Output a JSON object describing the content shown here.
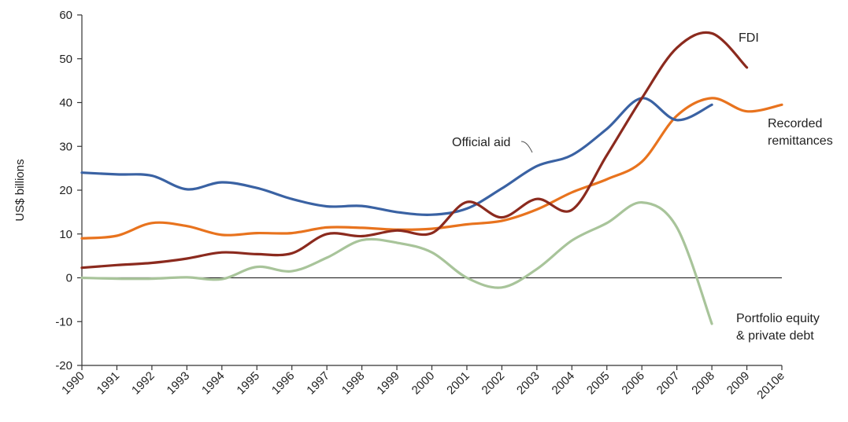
{
  "chart_data": {
    "type": "line",
    "title": "",
    "xlabel": "",
    "ylabel": "US$ billions",
    "ylim": [
      -20,
      60
    ],
    "yticks": [
      "60",
      "50",
      "40",
      "30",
      "20",
      "10",
      "0",
      "-10",
      "-20"
    ],
    "categories": [
      "1990",
      "1991",
      "1992",
      "1993",
      "1994",
      "1995",
      "1996",
      "1997",
      "1998",
      "1999",
      "2000",
      "2001",
      "2002",
      "2003",
      "2004",
      "2005",
      "2006",
      "2007",
      "2008",
      "2009",
      "2010e"
    ],
    "grid": false,
    "zero_line": true,
    "series": [
      {
        "name": "Official aid",
        "color": "#3a62a3",
        "x": [
          "1990",
          "1991",
          "1992",
          "1993",
          "1994",
          "1995",
          "1996",
          "1997",
          "1998",
          "1999",
          "2000",
          "2001",
          "2002",
          "2003",
          "2004",
          "2005",
          "2006",
          "2007",
          "2008"
        ],
        "values": [
          24,
          23.6,
          23.3,
          20.2,
          21.8,
          20.5,
          18,
          16.3,
          16.4,
          15,
          14.4,
          15.8,
          20.4,
          25.5,
          28,
          34,
          41,
          36,
          39.5
        ]
      },
      {
        "name": "Recorded remittances",
        "color": "#e8731e",
        "x": [
          "1990",
          "1991",
          "1992",
          "1993",
          "1994",
          "1995",
          "1996",
          "1997",
          "1998",
          "1999",
          "2000",
          "2001",
          "2002",
          "2003",
          "2004",
          "2005",
          "2006",
          "2007",
          "2008",
          "2009",
          "2010e"
        ],
        "values": [
          9,
          9.6,
          12.5,
          11.8,
          9.8,
          10.2,
          10.2,
          11.5,
          11.4,
          11,
          11.2,
          12.2,
          13,
          15.6,
          19.5,
          22.5,
          26.5,
          37,
          41,
          38,
          39.5
        ]
      },
      {
        "name": "FDI",
        "color": "#8b2a1e",
        "x": [
          "1990",
          "1991",
          "1992",
          "1993",
          "1994",
          "1995",
          "1996",
          "1997",
          "1998",
          "1999",
          "2000",
          "2001",
          "2002",
          "2003",
          "2004",
          "2005",
          "2006",
          "2007",
          "2008",
          "2009"
        ],
        "values": [
          2.3,
          2.9,
          3.4,
          4.4,
          5.8,
          5.4,
          5.6,
          10,
          9.5,
          10.8,
          10.2,
          17.3,
          13.8,
          18,
          15.5,
          28,
          41,
          52.5,
          55.8,
          48
        ]
      },
      {
        "name": "Portfolio equity & private debt",
        "color": "#a8c49a",
        "x": [
          "1990",
          "1991",
          "1992",
          "1993",
          "1994",
          "1995",
          "1996",
          "1997",
          "1998",
          "1999",
          "2000",
          "2001",
          "2002",
          "2003",
          "2004",
          "2005",
          "2006",
          "2007",
          "2008"
        ],
        "values": [
          0,
          -0.2,
          -0.2,
          0.1,
          -0.3,
          2.5,
          1.5,
          4.6,
          8.6,
          8,
          5.8,
          0,
          -2.2,
          2,
          8.5,
          12.5,
          17.2,
          11.5,
          -10.5
        ]
      }
    ],
    "annotations": [
      {
        "series": "FDI",
        "text": [
          "FDI"
        ]
      },
      {
        "series": "Recorded remittances",
        "text": [
          "Recorded",
          "remittances"
        ]
      },
      {
        "series": "Official aid",
        "text": [
          "Official aid"
        ]
      },
      {
        "series": "Portfolio equity & private debt",
        "text": [
          "Portfolio equity",
          "& private debt"
        ]
      }
    ]
  }
}
